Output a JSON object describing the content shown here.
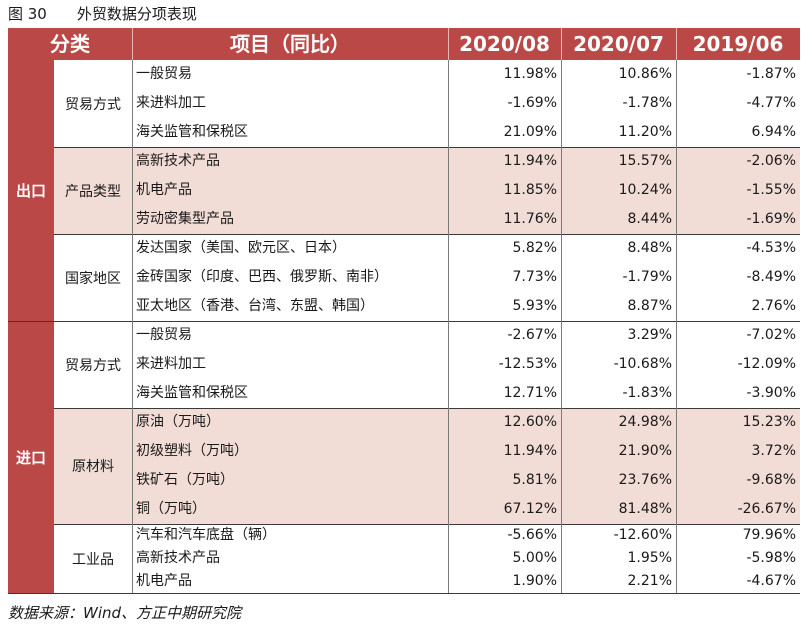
{
  "title": {
    "fig": "图 30",
    "text": "外贸数据分项表现"
  },
  "columns": {
    "category": "分类",
    "item": "项目（同比）",
    "c1": "2020/08",
    "c2": "2020/07",
    "c3": "2019/06"
  },
  "categories": [
    {
      "label": "出口",
      "groups": [
        {
          "label": "贸易方式",
          "rows": [
            {
              "item": "一般贸易",
              "v1": "11.98%",
              "v2": "10.86%",
              "v3": "-1.87%"
            },
            {
              "item": "来进料加工",
              "v1": "-1.69%",
              "v2": "-1.78%",
              "v3": "-4.77%"
            },
            {
              "item": "海关监管和保税区",
              "v1": "21.09%",
              "v2": "11.20%",
              "v3": "6.94%"
            }
          ]
        },
        {
          "label": "产品类型",
          "rows": [
            {
              "item": "高新技术产品",
              "v1": "11.94%",
              "v2": "15.57%",
              "v3": "-2.06%"
            },
            {
              "item": "机电产品",
              "v1": "11.85%",
              "v2": "10.24%",
              "v3": "-1.55%"
            },
            {
              "item": "劳动密集型产品",
              "v1": "11.76%",
              "v2": "8.44%",
              "v3": "-1.69%"
            }
          ]
        },
        {
          "label": "国家地区",
          "rows": [
            {
              "item": "发达国家（美国、欧元区、日本）",
              "v1": "5.82%",
              "v2": "8.48%",
              "v3": "-4.53%"
            },
            {
              "item": "金砖国家（印度、巴西、俄罗斯、南非）",
              "v1": "7.73%",
              "v2": "-1.79%",
              "v3": "-8.49%"
            },
            {
              "item": "亚太地区（香港、台湾、东盟、韩国）",
              "v1": "5.93%",
              "v2": "8.87%",
              "v3": "2.76%"
            }
          ]
        }
      ]
    },
    {
      "label": "进口",
      "groups": [
        {
          "label": "贸易方式",
          "rows": [
            {
              "item": "一般贸易",
              "v1": "-2.67%",
              "v2": "3.29%",
              "v3": "-7.02%"
            },
            {
              "item": "来进料加工",
              "v1": "-12.53%",
              "v2": "-10.68%",
              "v3": "-12.09%"
            },
            {
              "item": "海关监管和保税区",
              "v1": "12.71%",
              "v2": "-1.83%",
              "v3": "-3.90%"
            }
          ]
        },
        {
          "label": "原材料",
          "rows": [
            {
              "item": "原油（万吨）",
              "v1": "12.60%",
              "v2": "24.98%",
              "v3": "15.23%"
            },
            {
              "item": "初级塑料（万吨）",
              "v1": "11.94%",
              "v2": "21.90%",
              "v3": "3.72%"
            },
            {
              "item": "铁矿石（万吨）",
              "v1": "5.81%",
              "v2": "23.76%",
              "v3": "-9.68%"
            },
            {
              "item": "铜（万吨）",
              "v1": "67.12%",
              "v2": "81.48%",
              "v3": "-26.67%"
            }
          ]
        },
        {
          "label": "工业品",
          "rows": [
            {
              "item": "汽车和汽车底盘（辆）",
              "v1": "-5.66%",
              "v2": "-12.60%",
              "v3": "79.96%"
            },
            {
              "item": "高新技术产品",
              "v1": "5.00%",
              "v2": "1.95%",
              "v3": "-5.98%"
            },
            {
              "item": "机电产品",
              "v1": "1.90%",
              "v2": "2.21%",
              "v3": "-4.67%"
            }
          ]
        }
      ]
    }
  ],
  "source": "数据来源：Wind、方正中期研究院"
}
